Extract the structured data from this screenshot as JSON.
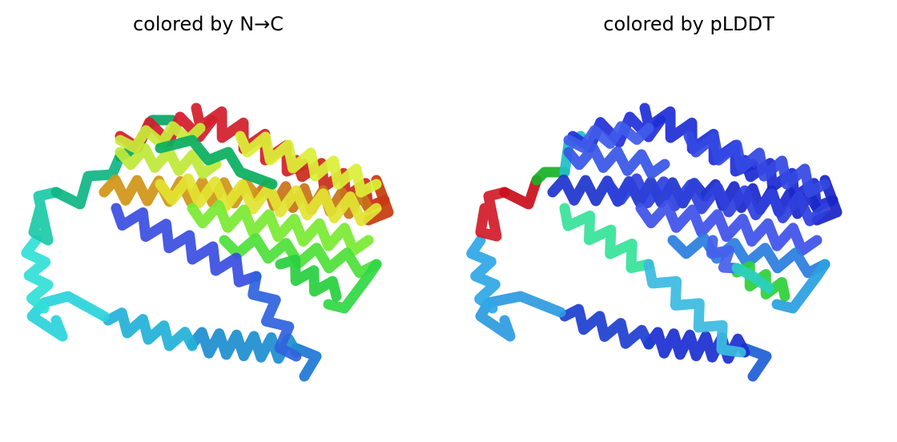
{
  "panels": [
    {
      "title": "colored by N→C"
    },
    {
      "title": "colored by pLDDT"
    }
  ]
}
